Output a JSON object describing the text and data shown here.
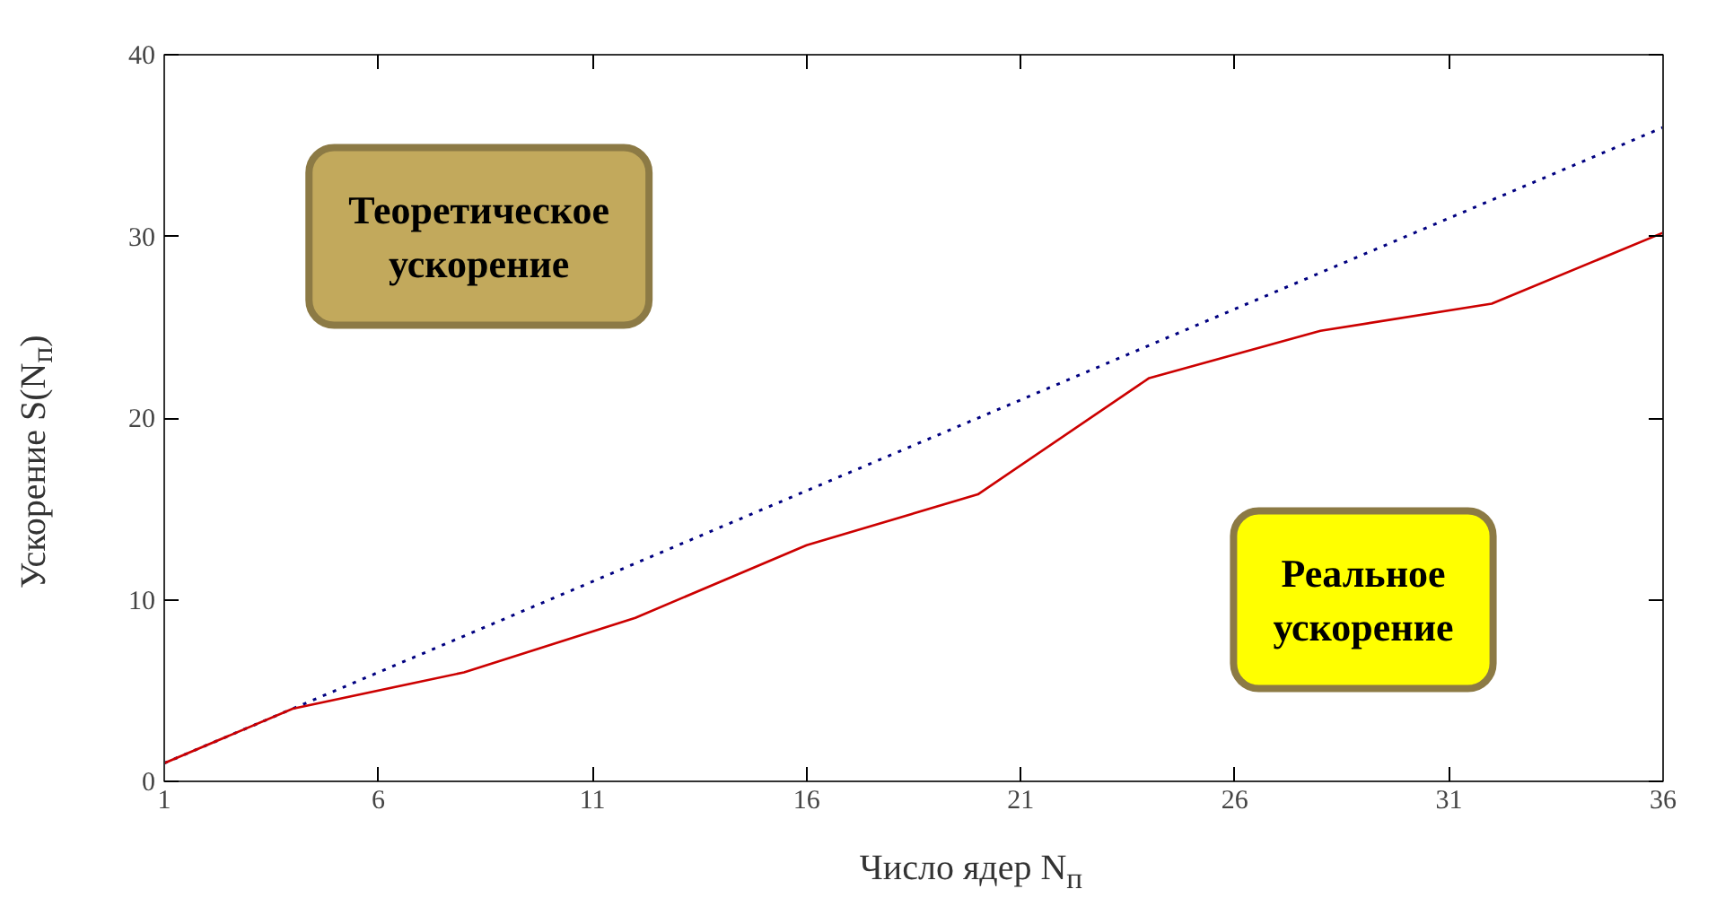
{
  "chart_data": {
    "type": "line",
    "xlabel": "Число ядер N$_{п}$",
    "ylabel": "Ускорение S(N$_{п}$)",
    "xlim": [
      1,
      36
    ],
    "ylim": [
      0,
      40
    ],
    "xticks": [
      1,
      6,
      11,
      16,
      21,
      26,
      31,
      36
    ],
    "yticks": [
      0,
      10,
      20,
      30,
      40
    ],
    "grid": false,
    "series": [
      {
        "color": "#000080",
        "line_style": "dotted",
        "x": [
          1,
          36
        ],
        "values": [
          1,
          36
        ]
      },
      {
        "color": "#cc0000",
        "line_style": "solid",
        "x": [
          1,
          4,
          8,
          12,
          16,
          20,
          24,
          28,
          32,
          36
        ],
        "values": [
          1,
          4,
          6,
          9,
          13,
          15.8,
          22.2,
          24.8,
          26.3,
          30.2
        ]
      }
    ],
    "annotations": [
      "Теоретическое\nускорение",
      "Реальное\nускорение"
    ]
  }
}
